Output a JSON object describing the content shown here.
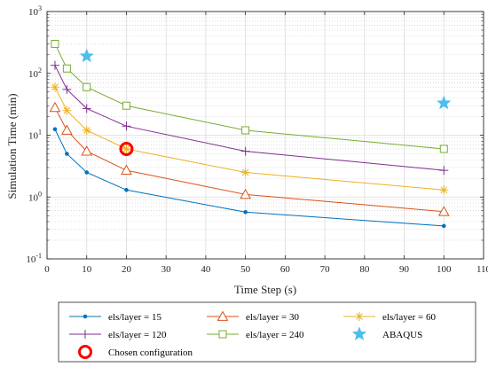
{
  "chart_data": {
    "type": "line",
    "xlabel": "Time Step (s)",
    "ylabel": "Simulation Time (min)",
    "xlim": [
      0,
      110
    ],
    "ylim": [
      0.1,
      1000
    ],
    "yscale": "log",
    "grid": true,
    "legend_placement": "below",
    "x_ticks": [
      "0",
      "10",
      "20",
      "30",
      "40",
      "50",
      "60",
      "70",
      "80",
      "90",
      "100",
      "110"
    ],
    "y_ticks": [
      {
        "base": "10",
        "exp": "-1",
        "value": 0.1
      },
      {
        "base": "10",
        "exp": "0",
        "value": 1
      },
      {
        "base": "10",
        "exp": "1",
        "value": 10
      },
      {
        "base": "10",
        "exp": "2",
        "value": 100
      },
      {
        "base": "10",
        "exp": "3",
        "value": 1000
      }
    ],
    "x": [
      2,
      5,
      10,
      20,
      50,
      100
    ],
    "series": [
      {
        "name": "els/layer = 15",
        "color": "#0072BD",
        "marker": "dot",
        "values": [
          12.5,
          5.0,
          2.5,
          1.3,
          0.57,
          0.34
        ]
      },
      {
        "name": "els/layer = 30",
        "color": "#D95319",
        "marker": "triangle",
        "values": [
          28,
          12,
          5.5,
          2.7,
          1.1,
          0.58
        ]
      },
      {
        "name": "els/layer = 60",
        "color": "#EDB120",
        "marker": "asterisk",
        "values": [
          60,
          25,
          12,
          6.0,
          2.5,
          1.3
        ]
      },
      {
        "name": "els/layer = 120",
        "color": "#7E2F8E",
        "marker": "plus",
        "values": [
          135,
          55,
          27,
          14,
          5.5,
          2.7
        ]
      },
      {
        "name": "els/layer = 240",
        "color": "#77AC30",
        "marker": "square",
        "values": [
          300,
          120,
          60,
          30,
          12,
          6.0
        ]
      }
    ],
    "abaqus": {
      "name": "ABAQUS",
      "color": "#4DBEEE",
      "marker": "star",
      "points": [
        {
          "x": 10,
          "y": 190
        },
        {
          "x": 100,
          "y": 33
        }
      ]
    },
    "chosen": {
      "name": "Chosen configuration",
      "color": "#FF0000",
      "marker": "circle",
      "x": 20,
      "y": 6.0
    }
  }
}
